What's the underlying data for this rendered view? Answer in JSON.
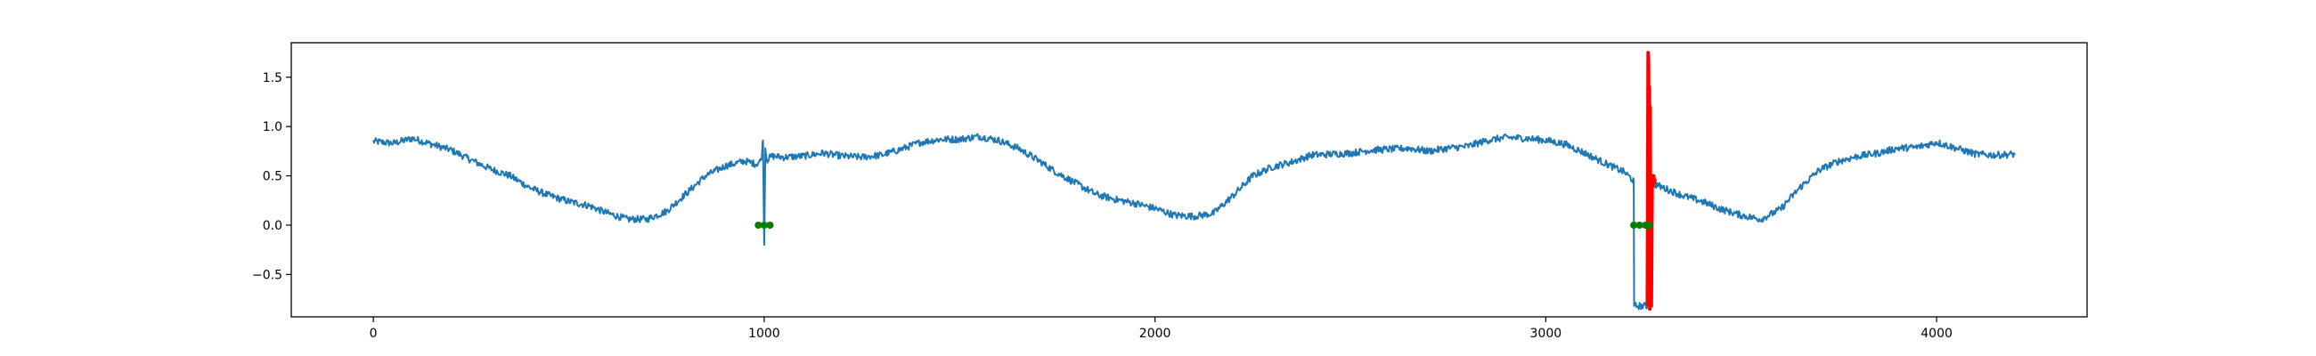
{
  "chart_data": {
    "type": "line",
    "title": "",
    "xlabel": "",
    "ylabel": "",
    "xlim": [
      -210,
      4385
    ],
    "ylim": [
      -0.93,
      1.85
    ],
    "grid": false,
    "legend": "none",
    "x_ticks": [
      {
        "value": 0,
        "label": "0"
      },
      {
        "value": 1000,
        "label": "1000"
      },
      {
        "value": 2000,
        "label": "2000"
      },
      {
        "value": 3000,
        "label": "3000"
      },
      {
        "value": 4000,
        "label": "4000"
      }
    ],
    "y_ticks": [
      {
        "value": -0.5,
        "label": "−0.5"
      },
      {
        "value": 0.0,
        "label": "0.0"
      },
      {
        "value": 0.5,
        "label": "0.5"
      },
      {
        "value": 1.0,
        "label": "1.0"
      },
      {
        "value": 1.5,
        "label": "1.5"
      }
    ],
    "series": [
      {
        "color": "#1f77b4",
        "style": "noisy line",
        "noise_amplitude": 0.035,
        "x": [
          0,
          50,
          100,
          150,
          200,
          250,
          300,
          350,
          400,
          450,
          500,
          550,
          600,
          650,
          700,
          750,
          800,
          850,
          900,
          950,
          980,
          993,
          997,
          1000,
          1003,
          1007,
          1020,
          1050,
          1100,
          1150,
          1200,
          1250,
          1300,
          1350,
          1400,
          1450,
          1500,
          1550,
          1600,
          1650,
          1700,
          1750,
          1800,
          1850,
          1900,
          1950,
          2000,
          2050,
          2100,
          2150,
          2200,
          2250,
          2300,
          2350,
          2400,
          2450,
          2500,
          2550,
          2600,
          2650,
          2700,
          2750,
          2800,
          2850,
          2900,
          2950,
          3000,
          3050,
          3100,
          3150,
          3200,
          3225,
          3226,
          3245,
          3255,
          3260,
          3261,
          3262,
          3275,
          3300,
          3350,
          3400,
          3450,
          3500,
          3550,
          3600,
          3650,
          3700,
          3750,
          3800,
          3850,
          3900,
          3950,
          4000,
          4050,
          4100,
          4150,
          4200
        ],
        "y": [
          0.85,
          0.83,
          0.88,
          0.82,
          0.76,
          0.66,
          0.57,
          0.5,
          0.38,
          0.3,
          0.24,
          0.2,
          0.12,
          0.06,
          0.06,
          0.14,
          0.32,
          0.5,
          0.6,
          0.65,
          0.62,
          0.66,
          0.86,
          -0.2,
          0.78,
          0.66,
          0.7,
          0.69,
          0.7,
          0.73,
          0.7,
          0.69,
          0.71,
          0.77,
          0.84,
          0.87,
          0.87,
          0.9,
          0.86,
          0.78,
          0.66,
          0.53,
          0.42,
          0.31,
          0.26,
          0.22,
          0.17,
          0.1,
          0.09,
          0.12,
          0.3,
          0.5,
          0.59,
          0.64,
          0.71,
          0.72,
          0.73,
          0.76,
          0.77,
          0.78,
          0.75,
          0.78,
          0.8,
          0.86,
          0.89,
          0.88,
          0.86,
          0.82,
          0.73,
          0.63,
          0.54,
          0.45,
          -0.82,
          -0.82,
          -0.82,
          -0.82,
          0.45,
          0.48,
          0.42,
          0.38,
          0.3,
          0.24,
          0.16,
          0.1,
          0.06,
          0.16,
          0.38,
          0.56,
          0.65,
          0.7,
          0.73,
          0.78,
          0.79,
          0.84,
          0.78,
          0.72,
          0.71,
          0.72
        ]
      },
      {
        "color": "#ff0000",
        "style": "spike",
        "x": [
          3260,
          3262,
          3263,
          3264,
          3265,
          3266,
          3267,
          3268,
          3269,
          3270,
          3272,
          3274,
          3276,
          3278,
          3280
        ],
        "y": [
          -0.82,
          1.75,
          1.6,
          -0.8,
          1.4,
          -0.85,
          1.2,
          -0.6,
          0.5,
          -0.82,
          0.45,
          0.4,
          0.5,
          0.44,
          0.47
        ]
      }
    ],
    "markers": [
      {
        "color": "#008000",
        "x": [
          985,
          1000,
          1015
        ],
        "y": [
          0.0,
          0.0,
          0.0
        ]
      },
      {
        "color": "#008000",
        "x": [
          3225,
          3240,
          3255,
          3265
        ],
        "y": [
          0.0,
          0.0,
          0.0,
          0.0
        ]
      }
    ]
  }
}
